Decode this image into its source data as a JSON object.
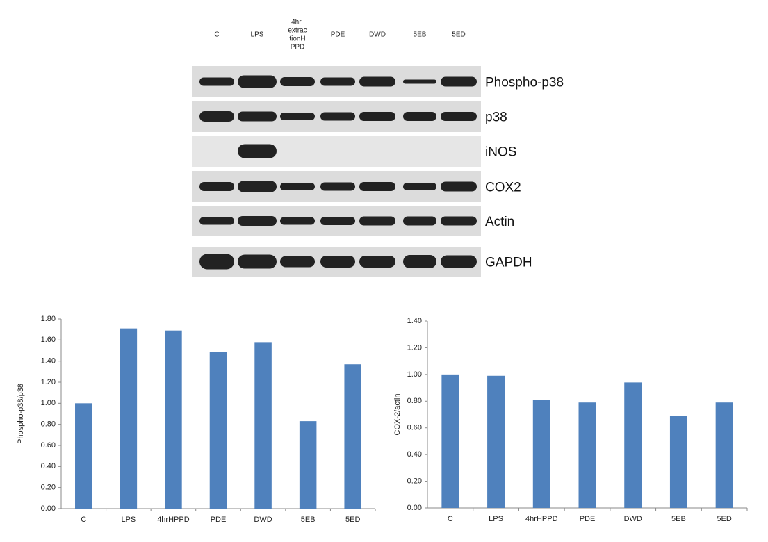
{
  "blot": {
    "lanes": [
      [
        "C"
      ],
      [
        "LPS"
      ],
      [
        "4hr-",
        "extrac",
        "tionH",
        "PPD"
      ],
      [
        "PDE"
      ],
      [
        "DWD"
      ],
      [
        "5EB"
      ],
      [
        "5ED"
      ]
    ],
    "rows": [
      "Phospho-p38",
      "p38",
      "iNOS",
      "COX2",
      "Actin",
      "GAPDH"
    ]
  },
  "chart_data": [
    {
      "type": "bar",
      "y_label": "Phospho-p38/p38",
      "categories": [
        "C",
        "LPS",
        "4hrHPPD",
        "PDE",
        "DWD",
        "5EB",
        "5ED"
      ],
      "values": [
        1.0,
        1.71,
        1.69,
        1.49,
        1.58,
        0.83,
        1.37
      ],
      "color": "#4f81bd",
      "ylim": [
        0,
        1.8
      ],
      "yticks": [
        {
          "value": 0,
          "label": "0.00"
        },
        {
          "value": 0.2,
          "label": "0.20"
        },
        {
          "value": 0.4,
          "label": "0.40"
        },
        {
          "value": 0.6,
          "label": "0.60"
        },
        {
          "value": 0.8,
          "label": "0.80"
        },
        {
          "value": 1.0,
          "label": "1.00"
        },
        {
          "value": 1.2,
          "label": "1.20"
        },
        {
          "value": 1.4,
          "label": "1.40"
        },
        {
          "value": 1.6,
          "label": "1.60"
        },
        {
          "value": 1.8,
          "label": "1.80"
        }
      ]
    },
    {
      "type": "bar",
      "y_label": "COX-2/actin",
      "categories": [
        "C",
        "LPS",
        "4hrHPPD",
        "PDE",
        "DWD",
        "5EB",
        "5ED"
      ],
      "values": [
        1.0,
        0.99,
        0.81,
        0.79,
        0.94,
        0.69,
        0.79
      ],
      "color": "#4f81bd",
      "ylim": [
        0,
        1.4
      ],
      "yticks": [
        {
          "value": 0,
          "label": "0.00"
        },
        {
          "value": 0.2,
          "label": "0.20"
        },
        {
          "value": 0.4,
          "label": "0.40"
        },
        {
          "value": 0.6,
          "label": "0.60"
        },
        {
          "value": 0.8,
          "label": "0.80"
        },
        {
          "value": 1.0,
          "label": "1.00"
        },
        {
          "value": 1.2,
          "label": "1.20"
        },
        {
          "value": 1.4,
          "label": "1.40"
        }
      ]
    }
  ]
}
